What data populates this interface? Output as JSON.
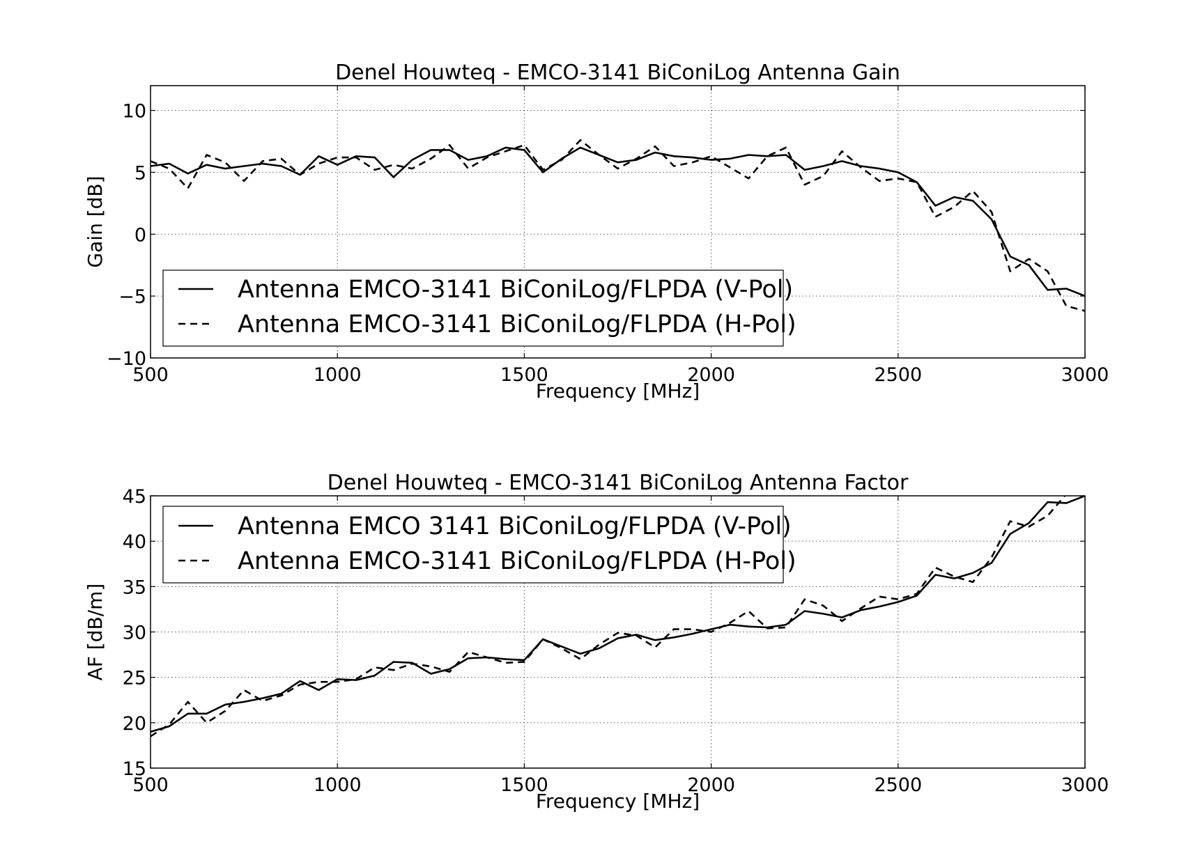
{
  "chart_data": [
    {
      "type": "line",
      "title": "Denel Houwteq - EMCO-3141 BiConiLog Antenna Gain",
      "xlabel": "Frequency [MHz]",
      "ylabel": "Gain [dB]",
      "xlim": [
        500,
        3000
      ],
      "ylim": [
        -10,
        12
      ],
      "xticks": [
        500,
        1000,
        1500,
        2000,
        2500,
        3000
      ],
      "yticks": [
        -10,
        -5,
        0,
        5,
        10
      ],
      "xtick_labels": [
        "500",
        "1000",
        "1500",
        "2000",
        "2500",
        "3000"
      ],
      "ytick_labels": [
        "−10",
        "−5",
        "0",
        "5",
        "10"
      ],
      "grid": true,
      "legend_position": "lower-left",
      "x": [
        500,
        550,
        600,
        650,
        700,
        750,
        800,
        850,
        900,
        950,
        1000,
        1050,
        1100,
        1150,
        1200,
        1250,
        1300,
        1350,
        1400,
        1450,
        1500,
        1550,
        1600,
        1650,
        1700,
        1750,
        1800,
        1850,
        1900,
        1950,
        2000,
        2050,
        2100,
        2150,
        2200,
        2250,
        2300,
        2350,
        2400,
        2450,
        2500,
        2550,
        2600,
        2650,
        2700,
        2750,
        2800,
        2850,
        2900,
        2950,
        3000
      ],
      "series": [
        {
          "name": "Antenna EMCO-3141 BiConiLog/FLPDA (V-Pol)",
          "style": "solid",
          "values": [
            5.5,
            5.7,
            4.9,
            5.6,
            5.3,
            5.5,
            5.7,
            5.5,
            4.8,
            6.3,
            5.6,
            6.3,
            6.2,
            4.6,
            6.0,
            6.8,
            6.8,
            6.0,
            6.3,
            7.0,
            6.8,
            5.0,
            6.1,
            7.0,
            6.4,
            5.8,
            6.0,
            6.6,
            6.3,
            6.2,
            6.0,
            6.1,
            6.4,
            6.3,
            6.4,
            5.2,
            5.5,
            5.9,
            5.5,
            5.3,
            5.0,
            4.2,
            2.3,
            3.0,
            2.7,
            1.2,
            -1.8,
            -2.5,
            -4.5,
            -4.4,
            -5.0
          ]
        },
        {
          "name": "Antenna EMCO-3141 BiConiLog/FLPDA (H-Pol)",
          "style": "dashed",
          "values": [
            5.9,
            5.3,
            3.7,
            6.4,
            5.8,
            4.3,
            5.9,
            6.1,
            4.8,
            5.7,
            6.2,
            6.2,
            5.2,
            5.6,
            5.3,
            6.1,
            7.2,
            5.3,
            6.2,
            6.7,
            7.2,
            5.2,
            6.0,
            7.6,
            6.4,
            5.3,
            6.1,
            7.1,
            5.5,
            5.8,
            6.3,
            5.4,
            4.5,
            6.3,
            7.0,
            4.0,
            4.7,
            6.7,
            5.4,
            4.3,
            4.5,
            4.2,
            1.4,
            2.2,
            3.5,
            1.8,
            -3.0,
            -2.0,
            -3.0,
            -5.8,
            -6.2
          ]
        }
      ]
    },
    {
      "type": "line",
      "title": "Denel Houwteq - EMCO-3141 BiConiLog Antenna Factor",
      "xlabel": "Frequency [MHz]",
      "ylabel": "AF [dB/m]",
      "xlim": [
        500,
        3000
      ],
      "ylim": [
        15,
        45
      ],
      "xticks": [
        500,
        1000,
        1500,
        2000,
        2500,
        3000
      ],
      "yticks": [
        15,
        20,
        25,
        30,
        35,
        40,
        45
      ],
      "xtick_labels": [
        "500",
        "1000",
        "1500",
        "2000",
        "2500",
        "3000"
      ],
      "ytick_labels": [
        "15",
        "20",
        "25",
        "30",
        "35",
        "40",
        "45"
      ],
      "grid": true,
      "legend_position": "upper-left",
      "x": [
        500,
        550,
        600,
        650,
        700,
        750,
        800,
        850,
        900,
        950,
        1000,
        1050,
        1100,
        1150,
        1200,
        1250,
        1300,
        1350,
        1400,
        1450,
        1500,
        1550,
        1600,
        1650,
        1700,
        1750,
        1800,
        1850,
        1900,
        1950,
        2000,
        2050,
        2100,
        2150,
        2200,
        2250,
        2300,
        2350,
        2400,
        2450,
        2500,
        2550,
        2600,
        2650,
        2700,
        2750,
        2800,
        2850,
        2900,
        2950,
        3000
      ],
      "series": [
        {
          "name": "Antenna EMCO 3141 BiConiLog/FLPDA (V-Pol)",
          "style": "solid",
          "values": [
            19.0,
            19.6,
            21.0,
            21.0,
            22.0,
            22.3,
            22.7,
            23.2,
            24.6,
            23.6,
            24.8,
            24.7,
            25.2,
            26.7,
            26.6,
            25.4,
            25.9,
            27.1,
            27.2,
            27.0,
            26.9,
            29.2,
            28.4,
            27.6,
            28.2,
            29.3,
            29.7,
            29.1,
            29.4,
            29.8,
            30.3,
            30.8,
            30.6,
            30.5,
            30.8,
            32.3,
            32.0,
            31.6,
            32.4,
            32.8,
            33.3,
            34.0,
            36.3,
            35.9,
            36.5,
            37.6,
            40.8,
            42.0,
            44.3,
            44.2,
            45.0
          ]
        },
        {
          "name": "Antenna EMCO-3141 BiConiLog/FLPDA (H-Pol)",
          "style": "dashed",
          "values": [
            18.5,
            19.8,
            22.3,
            20.0,
            21.3,
            23.6,
            22.4,
            23.0,
            24.2,
            24.5,
            24.5,
            24.8,
            26.1,
            25.8,
            26.5,
            26.2,
            25.6,
            27.8,
            27.2,
            26.6,
            26.7,
            29.2,
            28.2,
            27.0,
            28.6,
            29.9,
            29.6,
            28.3,
            30.3,
            30.3,
            30.0,
            31.0,
            32.3,
            30.4,
            30.5,
            33.6,
            32.9,
            31.2,
            32.6,
            33.9,
            33.6,
            34.2,
            37.1,
            36.1,
            35.5,
            38.2,
            42.2,
            41.6,
            42.8,
            45.2,
            45.5
          ]
        }
      ]
    }
  ]
}
